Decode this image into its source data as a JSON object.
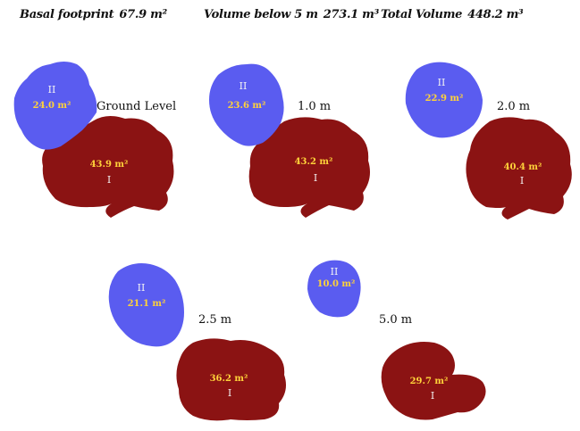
{
  "header": {
    "basal_label": "Basal footprint",
    "basal_value": "67.9 m²",
    "vol5_label": "Volume below 5 m",
    "vol5_value": "273.1 m³",
    "total_label": "Total Volume",
    "total_value": "448.2 m³"
  },
  "colors": {
    "blue": "#5a5cf0",
    "red": "#8b1313",
    "area_text": "#ffd23a",
    "roman_text": "#f3f3f3"
  },
  "panels": [
    {
      "level": "Ground Level",
      "blue_area": "24.0 m²",
      "red_area": "43.9 m²",
      "blue_id": "II",
      "red_id": "I"
    },
    {
      "level": "1.0 m",
      "blue_area": "23.6 m²",
      "red_area": "43.2 m²",
      "blue_id": "II",
      "red_id": "I"
    },
    {
      "level": "2.0 m",
      "blue_area": "22.9 m²",
      "red_area": "40.4 m²",
      "blue_id": "II",
      "red_id": "I"
    },
    {
      "level": "2.5 m",
      "blue_area": "21.1 m²",
      "red_area": "36.2 m²",
      "blue_id": "II",
      "red_id": "I"
    },
    {
      "level": "5.0 m",
      "blue_area": "10.0 m²",
      "red_area": "29.7 m²",
      "blue_id": "II",
      "red_id": "I"
    }
  ]
}
